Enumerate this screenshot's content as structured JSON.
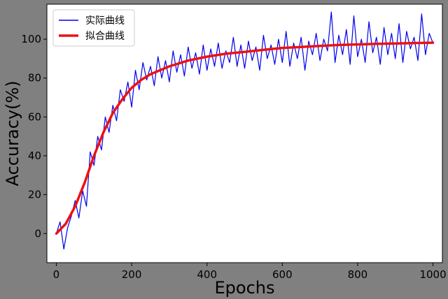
{
  "chart_data": {
    "type": "line",
    "xlabel": "Epochs",
    "ylabel": "Accuracy(%)",
    "xlim": [
      -25,
      1025
    ],
    "ylim": [
      -15,
      118
    ],
    "xticks": [
      0,
      200,
      400,
      600,
      800,
      1000
    ],
    "yticks": [
      0,
      20,
      40,
      60,
      80,
      100
    ],
    "grid": false,
    "legend_position": "top-left",
    "series": [
      {
        "name": "实际曲线",
        "color": "#0000ee",
        "style": "thin-noisy",
        "x": [
          0,
          10,
          20,
          30,
          40,
          50,
          60,
          70,
          80,
          90,
          100,
          110,
          120,
          130,
          140,
          150,
          160,
          170,
          180,
          190,
          200,
          210,
          220,
          230,
          240,
          250,
          260,
          270,
          280,
          290,
          300,
          310,
          320,
          330,
          340,
          350,
          360,
          370,
          380,
          390,
          400,
          410,
          420,
          430,
          440,
          450,
          460,
          470,
          480,
          490,
          500,
          510,
          520,
          530,
          540,
          550,
          560,
          570,
          580,
          590,
          600,
          610,
          620,
          630,
          640,
          650,
          660,
          670,
          680,
          690,
          700,
          710,
          720,
          730,
          740,
          750,
          760,
          770,
          780,
          790,
          800,
          810,
          820,
          830,
          840,
          850,
          860,
          870,
          880,
          890,
          900,
          910,
          920,
          930,
          940,
          950,
          960,
          970,
          980,
          990,
          1000
        ],
        "y": [
          0,
          6,
          -8,
          3,
          9,
          17,
          8,
          22,
          14,
          42,
          35,
          50,
          43,
          60,
          52,
          66,
          58,
          74,
          68,
          78,
          65,
          84,
          74,
          88,
          79,
          86,
          76,
          91,
          80,
          89,
          78,
          94,
          83,
          92,
          81,
          96,
          85,
          93,
          82,
          97,
          84,
          95,
          86,
          98,
          85,
          94,
          88,
          101,
          86,
          97,
          85,
          99,
          89,
          96,
          84,
          102,
          90,
          97,
          87,
          100,
          88,
          104,
          86,
          98,
          90,
          101,
          84,
          99,
          92,
          103,
          89,
          100,
          94,
          114,
          88,
          102,
          92,
          105,
          87,
          112,
          91,
          100,
          88,
          109,
          93,
          101,
          87,
          106,
          92,
          103,
          90,
          108,
          88,
          104,
          95,
          101,
          89,
          113,
          92,
          103,
          98
        ]
      },
      {
        "name": "拟合曲线",
        "color": "#ee1111",
        "style": "thick-smooth",
        "x": [
          0,
          25,
          50,
          75,
          100,
          125,
          150,
          175,
          200,
          225,
          250,
          300,
          350,
          400,
          450,
          500,
          550,
          600,
          650,
          700,
          750,
          800,
          850,
          900,
          950,
          1000
        ],
        "y": [
          0,
          5,
          14,
          26,
          40,
          52,
          62,
          69,
          75,
          79,
          82,
          86,
          89,
          91,
          92.5,
          93.5,
          94.5,
          95.5,
          96,
          96.5,
          97,
          97.3,
          97.6,
          97.8,
          98,
          98.2
        ]
      }
    ]
  }
}
